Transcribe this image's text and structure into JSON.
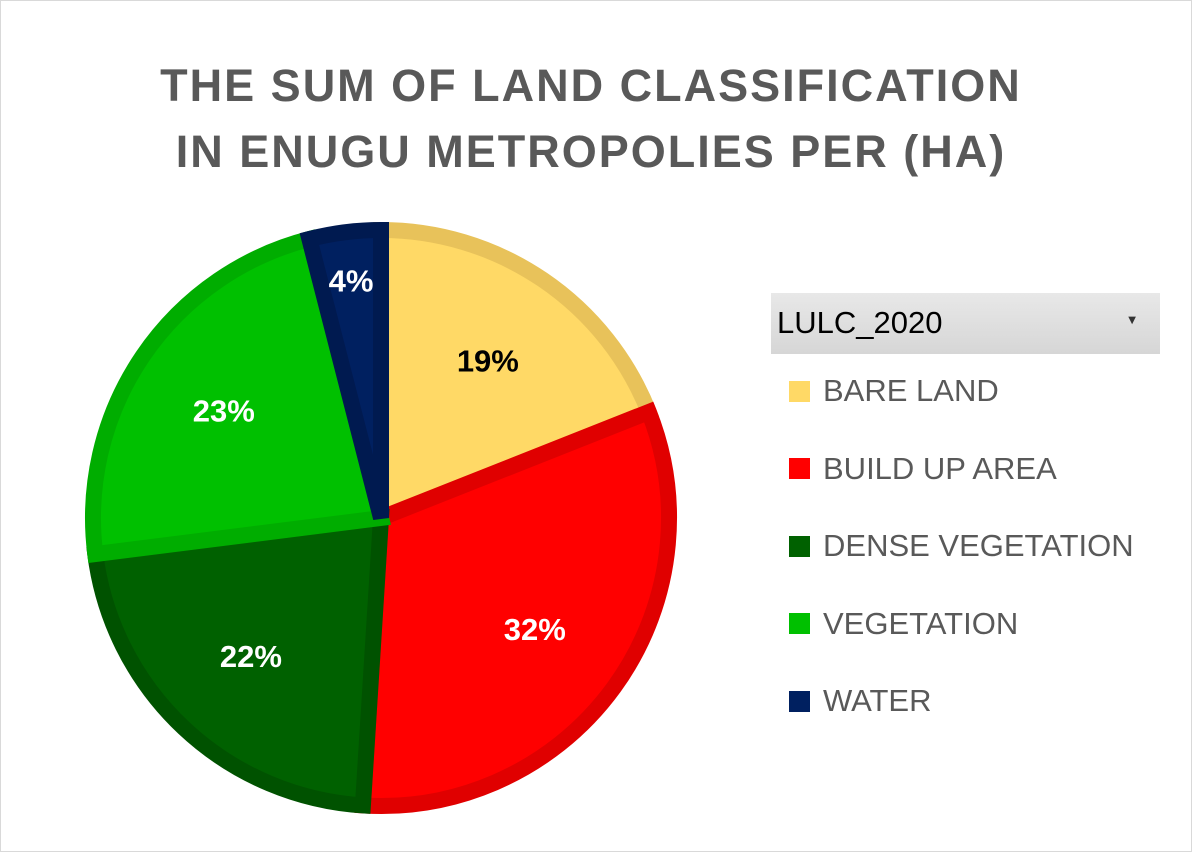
{
  "chart_data": {
    "type": "pie",
    "title_lines": [
      "THE SUM OF LAND CLASSIFICATION",
      "IN ENUGU METROPOLIES PER (HA)"
    ],
    "filter_field": "LULC_2020",
    "categories": [
      "BARE LAND",
      "BUILD UP AREA",
      "DENSE VEGETATION",
      "VEGETATION",
      "WATER"
    ],
    "values": [
      19,
      32,
      22,
      23,
      4
    ],
    "labels": [
      "19%",
      "32%",
      "22%",
      "23%",
      "4%"
    ],
    "colors": [
      "#ffd966",
      "#ff0000",
      "#006100",
      "#00c000",
      "#002060"
    ],
    "border_colors": [
      "#e8c25a",
      "#e00000",
      "#005200",
      "#00ad00",
      "#001a50"
    ],
    "label_colors": [
      "#000000",
      "#ffffff",
      "#ffffff",
      "#ffffff",
      "#ffffff"
    ],
    "legend_position": "right"
  }
}
